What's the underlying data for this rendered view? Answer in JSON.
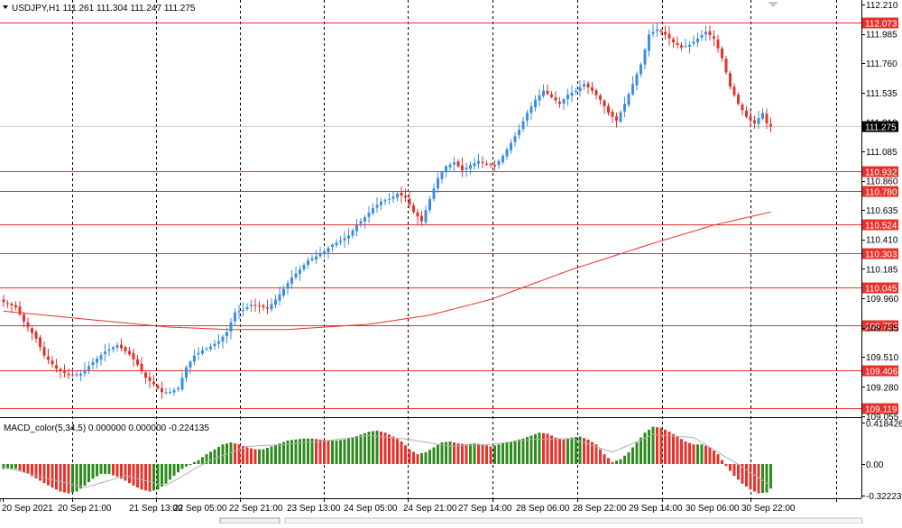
{
  "header": {
    "symbol_line": "USDJPY,H1  111.261 111.304 111.247 111.275",
    "macd_line": "MACD_color(5,34,5) 0.000000 0.000000 -0.224135"
  },
  "colors": {
    "up": "#3a8ee6",
    "down": "#e8312a",
    "level": "#e8312a",
    "ma": "#e8312a",
    "grid": "#000000",
    "macd_pos": "#2e8b1e",
    "macd_neg": "#e8312a",
    "current_bg": "#000000"
  },
  "chart_data": [
    {
      "type": "candlestick",
      "title": "USDJPY,H1",
      "ohlc_header": {
        "open": 111.261,
        "high": 111.304,
        "low": 111.247,
        "close": 111.275
      },
      "ylim": [
        109.055,
        112.21
      ],
      "y_ticks": [
        "112.210",
        "111.985",
        "111.760",
        "111.535",
        "111.310",
        "111.085",
        "110.860",
        "110.635",
        "110.410",
        "110.185",
        "109.960",
        "109.735",
        "109.510",
        "109.280",
        "109.055"
      ],
      "current_price": "111.275",
      "levels": [
        "112.073",
        "110.932",
        "110.780",
        "110.524",
        "110.303",
        "110.045",
        "109.753",
        "109.406",
        "109.119"
      ],
      "x_labels": [
        "20 Sep 2021",
        "20 Sep 21:00",
        "21 Sep 13:00",
        "22 Sep 05:00",
        "22 Sep 21:00",
        "23 Sep 13:00",
        "24 Sep 05:00",
        "24 Sep 21:00",
        "27 Sep 14:00",
        "28 Sep 06:00",
        "28 Sep 22:00",
        "29 Sep 14:00",
        "30 Sep 06:00",
        "30 Sep 22:00"
      ],
      "anchors": [
        [
          0,
          109.93
        ],
        [
          3,
          109.89
        ],
        [
          5,
          109.78
        ],
        [
          8,
          109.65
        ],
        [
          10,
          109.52
        ],
        [
          13,
          109.42
        ],
        [
          16,
          109.37
        ],
        [
          19,
          109.38
        ],
        [
          22,
          109.47
        ],
        [
          25,
          109.55
        ],
        [
          28,
          109.6
        ],
        [
          31,
          109.53
        ],
        [
          33,
          109.45
        ],
        [
          35,
          109.35
        ],
        [
          37,
          109.3
        ],
        [
          39,
          109.24
        ],
        [
          41,
          109.24
        ],
        [
          43,
          109.27
        ],
        [
          45,
          109.43
        ],
        [
          47,
          109.52
        ],
        [
          49,
          109.56
        ],
        [
          51,
          109.59
        ],
        [
          53,
          109.63
        ],
        [
          55,
          109.7
        ],
        [
          57,
          109.85
        ],
        [
          59,
          109.87
        ],
        [
          61,
          109.91
        ],
        [
          63,
          109.9
        ],
        [
          65,
          109.88
        ],
        [
          67,
          109.95
        ],
        [
          69,
          110.03
        ],
        [
          71,
          110.12
        ],
        [
          73,
          110.18
        ],
        [
          75,
          110.25
        ],
        [
          77,
          110.28
        ],
        [
          79,
          110.32
        ],
        [
          81,
          110.37
        ],
        [
          83,
          110.4
        ],
        [
          85,
          110.44
        ],
        [
          87,
          110.52
        ],
        [
          89,
          110.58
        ],
        [
          91,
          110.65
        ],
        [
          93,
          110.7
        ],
        [
          95,
          110.72
        ],
        [
          97,
          110.76
        ],
        [
          99,
          110.73
        ],
        [
          101,
          110.62
        ],
        [
          103,
          110.55
        ],
        [
          105,
          110.72
        ],
        [
          107,
          110.88
        ],
        [
          109,
          110.97
        ],
        [
          111,
          111.0
        ],
        [
          113,
          110.94
        ],
        [
          115,
          110.98
        ],
        [
          117,
          111.01
        ],
        [
          119,
          110.99
        ],
        [
          121,
          110.97
        ],
        [
          123,
          111.05
        ],
        [
          125,
          111.15
        ],
        [
          127,
          111.25
        ],
        [
          129,
          111.38
        ],
        [
          131,
          111.48
        ],
        [
          133,
          111.55
        ],
        [
          135,
          111.5
        ],
        [
          137,
          111.45
        ],
        [
          139,
          111.52
        ],
        [
          141,
          111.55
        ],
        [
          143,
          111.6
        ],
        [
          145,
          111.55
        ],
        [
          147,
          111.48
        ],
        [
          149,
          111.38
        ],
        [
          151,
          111.32
        ],
        [
          153,
          111.45
        ],
        [
          155,
          111.6
        ],
        [
          157,
          111.75
        ],
        [
          159,
          111.98
        ],
        [
          161,
          112.02
        ],
        [
          163,
          111.98
        ],
        [
          165,
          111.92
        ],
        [
          167,
          111.88
        ],
        [
          169,
          111.9
        ],
        [
          171,
          111.95
        ],
        [
          173,
          112.0
        ],
        [
          175,
          111.95
        ],
        [
          177,
          111.8
        ],
        [
          179,
          111.58
        ],
        [
          181,
          111.45
        ],
        [
          183,
          111.35
        ],
        [
          185,
          111.3
        ],
        [
          187,
          111.38
        ],
        [
          188,
          111.3
        ],
        [
          189,
          111.275
        ]
      ],
      "moving_average": [
        [
          0,
          109.86
        ],
        [
          20,
          109.8
        ],
        [
          40,
          109.74
        ],
        [
          55,
          109.72
        ],
        [
          70,
          109.72
        ],
        [
          90,
          109.76
        ],
        [
          105,
          109.83
        ],
        [
          120,
          109.95
        ],
        [
          140,
          110.18
        ],
        [
          160,
          110.38
        ],
        [
          175,
          110.52
        ],
        [
          189,
          110.62
        ]
      ],
      "candles_count": 190
    },
    {
      "type": "histogram",
      "title": "MACD_color(5,34,5)",
      "values_header": [
        0.0,
        0.0,
        -0.224135
      ],
      "ylim": [
        -0.34,
        0.45
      ],
      "y_ticks": [
        "0.418426",
        "0.00",
        "-0.32223"
      ],
      "anchors": [
        [
          0,
          -0.05
        ],
        [
          3,
          -0.05
        ],
        [
          6,
          -0.1
        ],
        [
          9,
          -0.17
        ],
        [
          12,
          -0.24
        ],
        [
          14,
          -0.28
        ],
        [
          16,
          -0.3
        ],
        [
          18,
          -0.28
        ],
        [
          20,
          -0.22
        ],
        [
          22,
          -0.15
        ],
        [
          24,
          -0.1
        ],
        [
          26,
          -0.1
        ],
        [
          28,
          -0.13
        ],
        [
          30,
          -0.17
        ],
        [
          32,
          -0.22
        ],
        [
          34,
          -0.26
        ],
        [
          36,
          -0.28
        ],
        [
          38,
          -0.26
        ],
        [
          40,
          -0.2
        ],
        [
          42,
          -0.12
        ],
        [
          44,
          -0.05
        ],
        [
          46,
          0.0
        ],
        [
          48,
          0.04
        ],
        [
          50,
          0.1
        ],
        [
          52,
          0.15
        ],
        [
          54,
          0.2
        ],
        [
          56,
          0.22
        ],
        [
          58,
          0.2
        ],
        [
          60,
          0.17
        ],
        [
          62,
          0.15
        ],
        [
          64,
          0.15
        ],
        [
          66,
          0.18
        ],
        [
          68,
          0.21
        ],
        [
          70,
          0.24
        ],
        [
          72,
          0.25
        ],
        [
          74,
          0.26
        ],
        [
          76,
          0.26
        ],
        [
          78,
          0.25
        ],
        [
          80,
          0.24
        ],
        [
          82,
          0.24
        ],
        [
          84,
          0.25
        ],
        [
          86,
          0.27
        ],
        [
          88,
          0.3
        ],
        [
          90,
          0.33
        ],
        [
          92,
          0.34
        ],
        [
          94,
          0.32
        ],
        [
          96,
          0.28
        ],
        [
          98,
          0.23
        ],
        [
          100,
          0.15
        ],
        [
          102,
          0.1
        ],
        [
          104,
          0.12
        ],
        [
          106,
          0.17
        ],
        [
          108,
          0.22
        ],
        [
          110,
          0.23
        ],
        [
          112,
          0.21
        ],
        [
          114,
          0.2
        ],
        [
          116,
          0.21
        ],
        [
          118,
          0.2
        ],
        [
          120,
          0.18
        ],
        [
          122,
          0.2
        ],
        [
          124,
          0.22
        ],
        [
          126,
          0.24
        ],
        [
          128,
          0.26
        ],
        [
          130,
          0.29
        ],
        [
          132,
          0.32
        ],
        [
          134,
          0.31
        ],
        [
          136,
          0.27
        ],
        [
          138,
          0.25
        ],
        [
          140,
          0.27
        ],
        [
          142,
          0.28
        ],
        [
          144,
          0.25
        ],
        [
          146,
          0.2
        ],
        [
          148,
          0.1
        ],
        [
          150,
          0.02
        ],
        [
          152,
          0.05
        ],
        [
          154,
          0.12
        ],
        [
          156,
          0.22
        ],
        [
          158,
          0.32
        ],
        [
          160,
          0.38
        ],
        [
          162,
          0.37
        ],
        [
          164,
          0.33
        ],
        [
          166,
          0.28
        ],
        [
          168,
          0.23
        ],
        [
          170,
          0.2
        ],
        [
          172,
          0.2
        ],
        [
          174,
          0.17
        ],
        [
          176,
          0.1
        ],
        [
          178,
          -0.02
        ],
        [
          180,
          -0.12
        ],
        [
          182,
          -0.2
        ],
        [
          184,
          -0.26
        ],
        [
          186,
          -0.3
        ],
        [
          188,
          -0.29
        ],
        [
          189,
          -0.25
        ]
      ],
      "signal": [
        [
          0,
          -0.03
        ],
        [
          10,
          -0.14
        ],
        [
          20,
          -0.24
        ],
        [
          30,
          -0.12
        ],
        [
          40,
          -0.22
        ],
        [
          50,
          0.02
        ],
        [
          60,
          0.18
        ],
        [
          70,
          0.2
        ],
        [
          80,
          0.24
        ],
        [
          90,
          0.29
        ],
        [
          100,
          0.25
        ],
        [
          110,
          0.18
        ],
        [
          120,
          0.2
        ],
        [
          130,
          0.25
        ],
        [
          140,
          0.26
        ],
        [
          150,
          0.12
        ],
        [
          160,
          0.3
        ],
        [
          170,
          0.27
        ],
        [
          180,
          0.02
        ],
        [
          189,
          -0.22
        ]
      ]
    }
  ]
}
